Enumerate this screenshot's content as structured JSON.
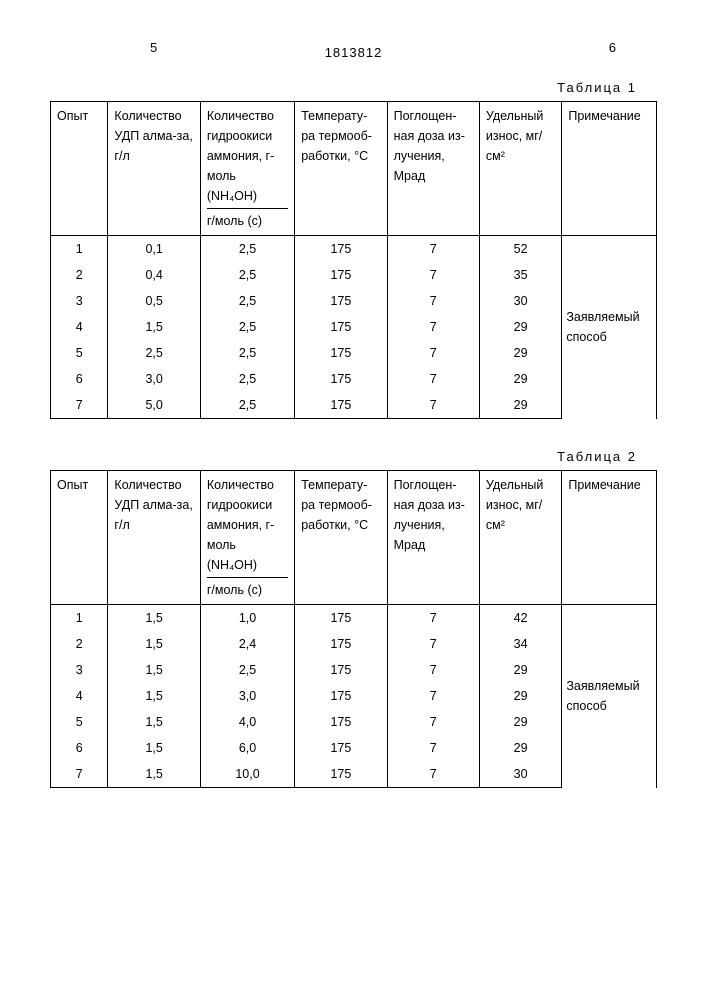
{
  "page_left": "5",
  "page_right": "6",
  "document_number": "1813812",
  "headers": [
    "Опыт",
    "Количество УДП алма-за, г/л",
    "Количество гидроокиси аммония, г-моль (NH₄OH)",
    "Температу-ра термооб-работки, °С",
    "Поглощен-ная доза из-лучения, Мрад",
    "Удельный износ, мг/см²",
    "Примечание"
  ],
  "header_sub": "г/моль (с)",
  "note_text": "Заявляемый способ",
  "tables": [
    {
      "label": "Таблица 1",
      "rows": [
        [
          "1",
          "0,1",
          "2,5",
          "175",
          "7",
          "52"
        ],
        [
          "2",
          "0,4",
          "2,5",
          "175",
          "7",
          "35"
        ],
        [
          "3",
          "0,5",
          "2,5",
          "175",
          "7",
          "30"
        ],
        [
          "4",
          "1,5",
          "2,5",
          "175",
          "7",
          "29"
        ],
        [
          "5",
          "2,5",
          "2,5",
          "175",
          "7",
          "29"
        ],
        [
          "6",
          "3,0",
          "2,5",
          "175",
          "7",
          "29"
        ],
        [
          "7",
          "5,0",
          "2,5",
          "175",
          "7",
          "29"
        ]
      ]
    },
    {
      "label": "Таблица 2",
      "rows": [
        [
          "1",
          "1,5",
          "1,0",
          "175",
          "7",
          "42"
        ],
        [
          "2",
          "1,5",
          "2,4",
          "175",
          "7",
          "34"
        ],
        [
          "3",
          "1,5",
          "2,5",
          "175",
          "7",
          "29"
        ],
        [
          "4",
          "1,5",
          "3,0",
          "175",
          "7",
          "29"
        ],
        [
          "5",
          "1,5",
          "4,0",
          "175",
          "7",
          "29"
        ],
        [
          "6",
          "1,5",
          "6,0",
          "175",
          "7",
          "29"
        ],
        [
          "7",
          "1,5",
          "10,0",
          "175",
          "7",
          "30"
        ]
      ]
    }
  ]
}
